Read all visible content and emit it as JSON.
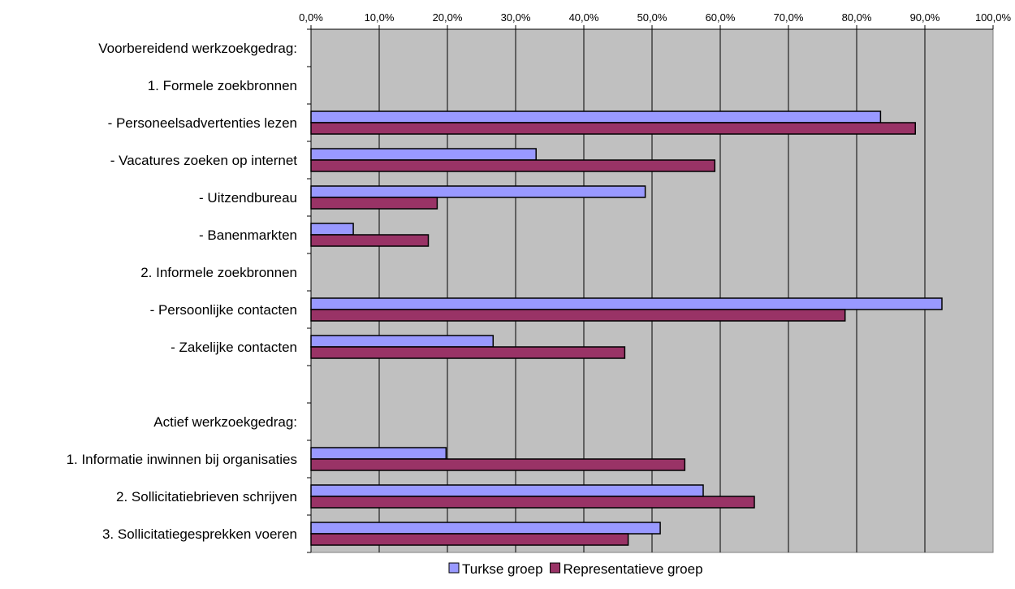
{
  "chart_data": {
    "type": "bar",
    "orientation": "horizontal",
    "categories": [
      "Voorbereidend werkzoekgedrag:",
      "1. Formele zoekbronnen",
      "- Personeelsadvertenties lezen",
      "- Vacatures zoeken op internet",
      "- Uitzendbureau",
      "- Banenmarkten",
      "2. Informele zoekbronnen",
      "- Persoonlijke contacten",
      "- Zakelijke contacten",
      "",
      "Actief werkzoekgedrag:",
      "1. Informatie inwinnen bij organisaties",
      "2. Sollicitatiebrieven schrijven",
      "3. Sollicitatiegesprekken voeren"
    ],
    "series": [
      {
        "name": "Turkse groep",
        "color": "#9999ff",
        "values": [
          null,
          null,
          83.5,
          33.0,
          49.0,
          6.2,
          null,
          92.5,
          26.7,
          null,
          null,
          19.8,
          57.5,
          51.2
        ]
      },
      {
        "name": "Representatieve groep",
        "color": "#993366",
        "values": [
          null,
          null,
          88.6,
          59.2,
          18.5,
          17.2,
          null,
          78.3,
          46.0,
          null,
          null,
          54.8,
          65.0,
          46.5
        ]
      }
    ],
    "x_ticks": [
      "0,0%",
      "10,0%",
      "20,0%",
      "30,0%",
      "40,0%",
      "50,0%",
      "60,0%",
      "70,0%",
      "80,0%",
      "90,0%",
      "100,0%"
    ],
    "xlim": [
      0,
      100
    ],
    "x_axis_position": "top",
    "grid": true,
    "plot_background": "#c0c0c0",
    "legend_position": "bottom"
  }
}
